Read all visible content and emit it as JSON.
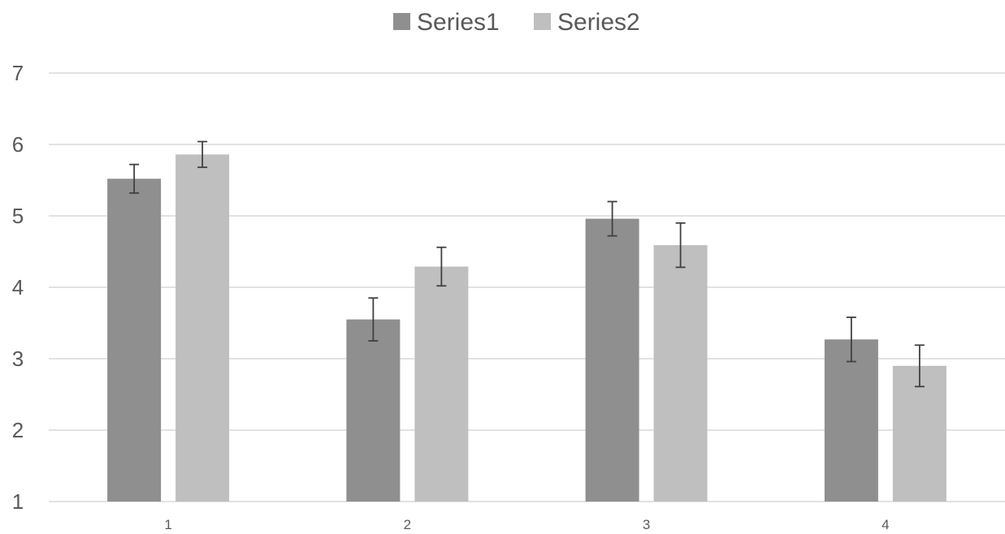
{
  "chart_data": {
    "type": "bar",
    "title": "",
    "xlabel": "",
    "ylabel": "",
    "categories": [
      "1",
      "2",
      "3",
      "4"
    ],
    "ylim": [
      1,
      7
    ],
    "yticks": [
      1,
      2,
      3,
      4,
      5,
      6,
      7
    ],
    "grid": true,
    "legend": "top-center",
    "series": [
      {
        "name": "Series1",
        "color": "#8f8f8f",
        "values": [
          5.52,
          3.55,
          4.96,
          3.27
        ],
        "error": [
          0.2,
          0.3,
          0.24,
          0.31
        ]
      },
      {
        "name": "Series2",
        "color": "#bfbfbf",
        "values": [
          5.86,
          4.29,
          4.59,
          2.9
        ],
        "error": [
          0.18,
          0.27,
          0.31,
          0.29
        ]
      }
    ],
    "gridline_color": "#d9d9d9",
    "errorbar_color": "#404040"
  }
}
